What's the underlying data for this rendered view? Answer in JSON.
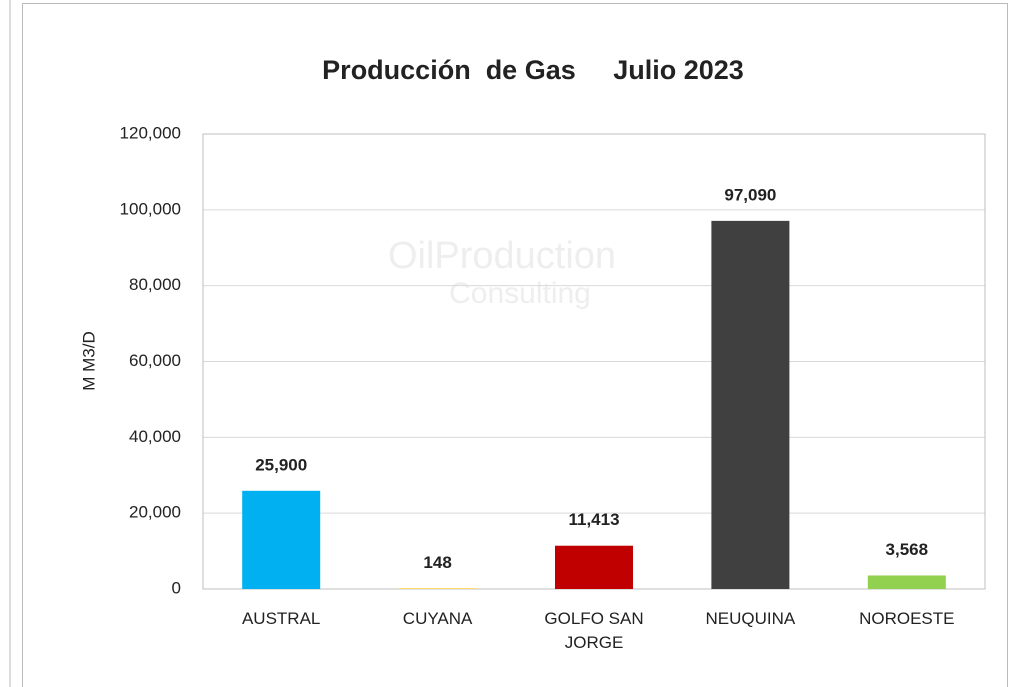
{
  "chart_data": {
    "type": "bar",
    "title": "Producción  de Gas     Julio 2023",
    "watermark": [
      "OilProduction",
      "Consulting"
    ],
    "y_label": "M M3/D",
    "categories": [
      "AUSTRAL",
      "CUYANA",
      "GOLFO SAN JORGE",
      "NEUQUINA",
      "NOROESTE"
    ],
    "values": [
      25900,
      148,
      11413,
      97090,
      3568
    ],
    "value_labels": [
      "25,900",
      "148",
      "11,413",
      "97,090",
      "3,568"
    ],
    "colors": [
      "#00b0f0",
      "#ffc000",
      "#c00000",
      "#404040",
      "#92d050"
    ],
    "ylim": [
      0,
      120000
    ],
    "yticks": [
      0,
      {
        "value": 20000,
        "label": "20,000"
      },
      {
        "value": 40000,
        "label": "40,000"
      },
      {
        "value": 60000,
        "label": "60,000"
      },
      {
        "value": 80000,
        "label": "80,000"
      },
      {
        "value": 100000,
        "label": "100,000"
      },
      {
        "value": 120000,
        "label": "120,000"
      }
    ],
    "grid": true
  }
}
